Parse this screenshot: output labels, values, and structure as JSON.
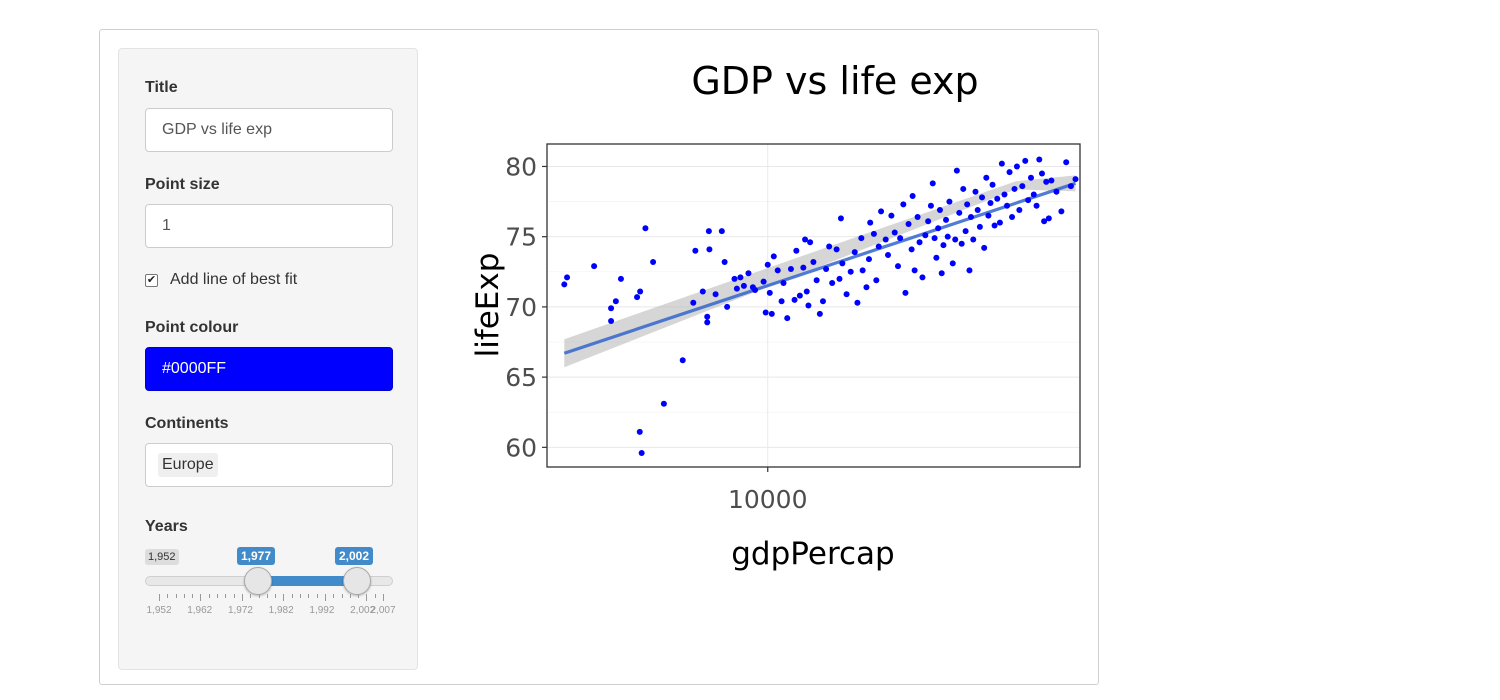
{
  "sidebar": {
    "title_label": "Title",
    "title_value": "GDP vs life exp",
    "size_label": "Point size",
    "size_value": "1",
    "fit_label": "Add line of best fit",
    "fit_checked": true,
    "colour_label": "Point colour",
    "colour_value": "#0000FF",
    "continents_label": "Continents",
    "continents_selected": "Europe",
    "years_label": "Years",
    "years_min": "1,952",
    "years_from": "1,977",
    "years_to": "2,002",
    "years_grid": [
      "1,952",
      "1,962",
      "1,972",
      "1,982",
      "1,992",
      "2,002",
      "2,007"
    ]
  },
  "chart_data": {
    "type": "scatter",
    "title": "GDP vs life exp",
    "xlabel": "gdpPercap",
    "ylabel": "lifeExp",
    "x_scale": "log",
    "xlim": [
      3400,
      46000
    ],
    "ylim": [
      58.6,
      81.6
    ],
    "x_ticks": [
      10000
    ],
    "x_tick_labels": [
      "10000"
    ],
    "y_ticks": [
      60,
      65,
      70,
      75,
      80
    ],
    "y_tick_labels": [
      "60",
      "65",
      "70",
      "75",
      "80"
    ],
    "point_color": "#0000FF",
    "fit_line": {
      "color": "#3366CC",
      "band_color": "#BBBBBB",
      "start": [
        3700,
        66.7
      ],
      "end": [
        45000,
        78.8
      ]
    },
    "points": [
      [
        3700,
        71.6
      ],
      [
        3750,
        72.1
      ],
      [
        4280,
        72.9
      ],
      [
        4650,
        69.0
      ],
      [
        4650,
        69.9
      ],
      [
        4760,
        70.4
      ],
      [
        4880,
        72.0
      ],
      [
        5280,
        70.7
      ],
      [
        5360,
        71.1
      ],
      [
        5500,
        75.6
      ],
      [
        5710,
        73.2
      ],
      [
        5350,
        61.1
      ],
      [
        5400,
        59.6
      ],
      [
        6020,
        63.1
      ],
      [
        6600,
        66.2
      ],
      [
        6950,
        70.3
      ],
      [
        7020,
        74.0
      ],
      [
        7280,
        71.1
      ],
      [
        7440,
        69.3
      ],
      [
        7440,
        68.9
      ],
      [
        7500,
        75.4
      ],
      [
        7520,
        74.1
      ],
      [
        7750,
        70.9
      ],
      [
        7990,
        75.4
      ],
      [
        8100,
        73.2
      ],
      [
        8200,
        70.0
      ],
      [
        8500,
        72.0
      ],
      [
        8600,
        71.3
      ],
      [
        8750,
        72.1
      ],
      [
        8900,
        71.5
      ],
      [
        9100,
        72.4
      ],
      [
        9300,
        71.4
      ],
      [
        9400,
        71.2
      ],
      [
        9800,
        71.8
      ],
      [
        9900,
        69.6
      ],
      [
        10000,
        73.0
      ],
      [
        10100,
        71.0
      ],
      [
        10200,
        69.5
      ],
      [
        10300,
        73.6
      ],
      [
        10500,
        72.6
      ],
      [
        10700,
        70.4
      ],
      [
        10800,
        71.7
      ],
      [
        11000,
        69.2
      ],
      [
        11200,
        72.7
      ],
      [
        11400,
        70.5
      ],
      [
        11500,
        74.0
      ],
      [
        11700,
        70.8
      ],
      [
        11900,
        72.8
      ],
      [
        12000,
        74.8
      ],
      [
        12100,
        71.1
      ],
      [
        12200,
        70.1
      ],
      [
        12300,
        74.6
      ],
      [
        12500,
        73.2
      ],
      [
        12700,
        71.9
      ],
      [
        12900,
        69.5
      ],
      [
        13100,
        70.4
      ],
      [
        13300,
        72.7
      ],
      [
        13500,
        74.3
      ],
      [
        13700,
        71.7
      ],
      [
        14000,
        74.1
      ],
      [
        14200,
        72.0
      ],
      [
        14300,
        76.3
      ],
      [
        14400,
        73.1
      ],
      [
        14700,
        70.9
      ],
      [
        15000,
        72.5
      ],
      [
        15300,
        73.9
      ],
      [
        15500,
        70.3
      ],
      [
        15800,
        74.9
      ],
      [
        15900,
        72.6
      ],
      [
        16200,
        71.4
      ],
      [
        16400,
        73.4
      ],
      [
        16500,
        76.0
      ],
      [
        16800,
        75.2
      ],
      [
        17000,
        71.9
      ],
      [
        17200,
        74.3
      ],
      [
        17400,
        76.8
      ],
      [
        17800,
        74.8
      ],
      [
        18000,
        73.7
      ],
      [
        18300,
        76.5
      ],
      [
        18600,
        75.3
      ],
      [
        18900,
        72.9
      ],
      [
        19100,
        74.9
      ],
      [
        19400,
        77.3
      ],
      [
        19600,
        71.0
      ],
      [
        19900,
        75.9
      ],
      [
        20200,
        74.1
      ],
      [
        20300,
        77.9
      ],
      [
        20500,
        72.6
      ],
      [
        20800,
        76.4
      ],
      [
        21000,
        74.6
      ],
      [
        21300,
        72.1
      ],
      [
        21600,
        75.1
      ],
      [
        21900,
        76.1
      ],
      [
        22200,
        77.2
      ],
      [
        22400,
        78.8
      ],
      [
        22600,
        74.9
      ],
      [
        22800,
        73.5
      ],
      [
        23000,
        75.6
      ],
      [
        23200,
        76.9
      ],
      [
        23400,
        72.4
      ],
      [
        23600,
        74.4
      ],
      [
        23900,
        76.2
      ],
      [
        24100,
        75.0
      ],
      [
        24300,
        77.5
      ],
      [
        24700,
        73.1
      ],
      [
        25000,
        74.8
      ],
      [
        25200,
        79.7
      ],
      [
        25500,
        76.7
      ],
      [
        25800,
        74.5
      ],
      [
        26000,
        78.4
      ],
      [
        26300,
        75.4
      ],
      [
        26500,
        77.3
      ],
      [
        26800,
        72.6
      ],
      [
        27000,
        76.4
      ],
      [
        27300,
        74.8
      ],
      [
        27600,
        78.2
      ],
      [
        27900,
        76.9
      ],
      [
        28200,
        75.7
      ],
      [
        28500,
        77.8
      ],
      [
        28800,
        74.2
      ],
      [
        29100,
        79.2
      ],
      [
        29400,
        76.5
      ],
      [
        29700,
        77.4
      ],
      [
        30000,
        78.7
      ],
      [
        30300,
        75.8
      ],
      [
        30700,
        77.7
      ],
      [
        31100,
        76.0
      ],
      [
        31400,
        80.2
      ],
      [
        31800,
        78.0
      ],
      [
        32200,
        77.2
      ],
      [
        32600,
        79.6
      ],
      [
        33000,
        76.4
      ],
      [
        33400,
        78.4
      ],
      [
        33800,
        80.0
      ],
      [
        34200,
        76.9
      ],
      [
        34700,
        78.6
      ],
      [
        35200,
        80.4
      ],
      [
        35700,
        77.6
      ],
      [
        36200,
        79.2
      ],
      [
        36700,
        78.0
      ],
      [
        37200,
        77.2
      ],
      [
        37700,
        80.5
      ],
      [
        38200,
        79.5
      ],
      [
        38600,
        76.1
      ],
      [
        39000,
        78.9
      ],
      [
        39500,
        76.3
      ],
      [
        40000,
        79.0
      ],
      [
        41000,
        78.2
      ],
      [
        42000,
        76.8
      ],
      [
        43000,
        80.3
      ],
      [
        44000,
        78.6
      ],
      [
        45000,
        79.1
      ]
    ]
  }
}
